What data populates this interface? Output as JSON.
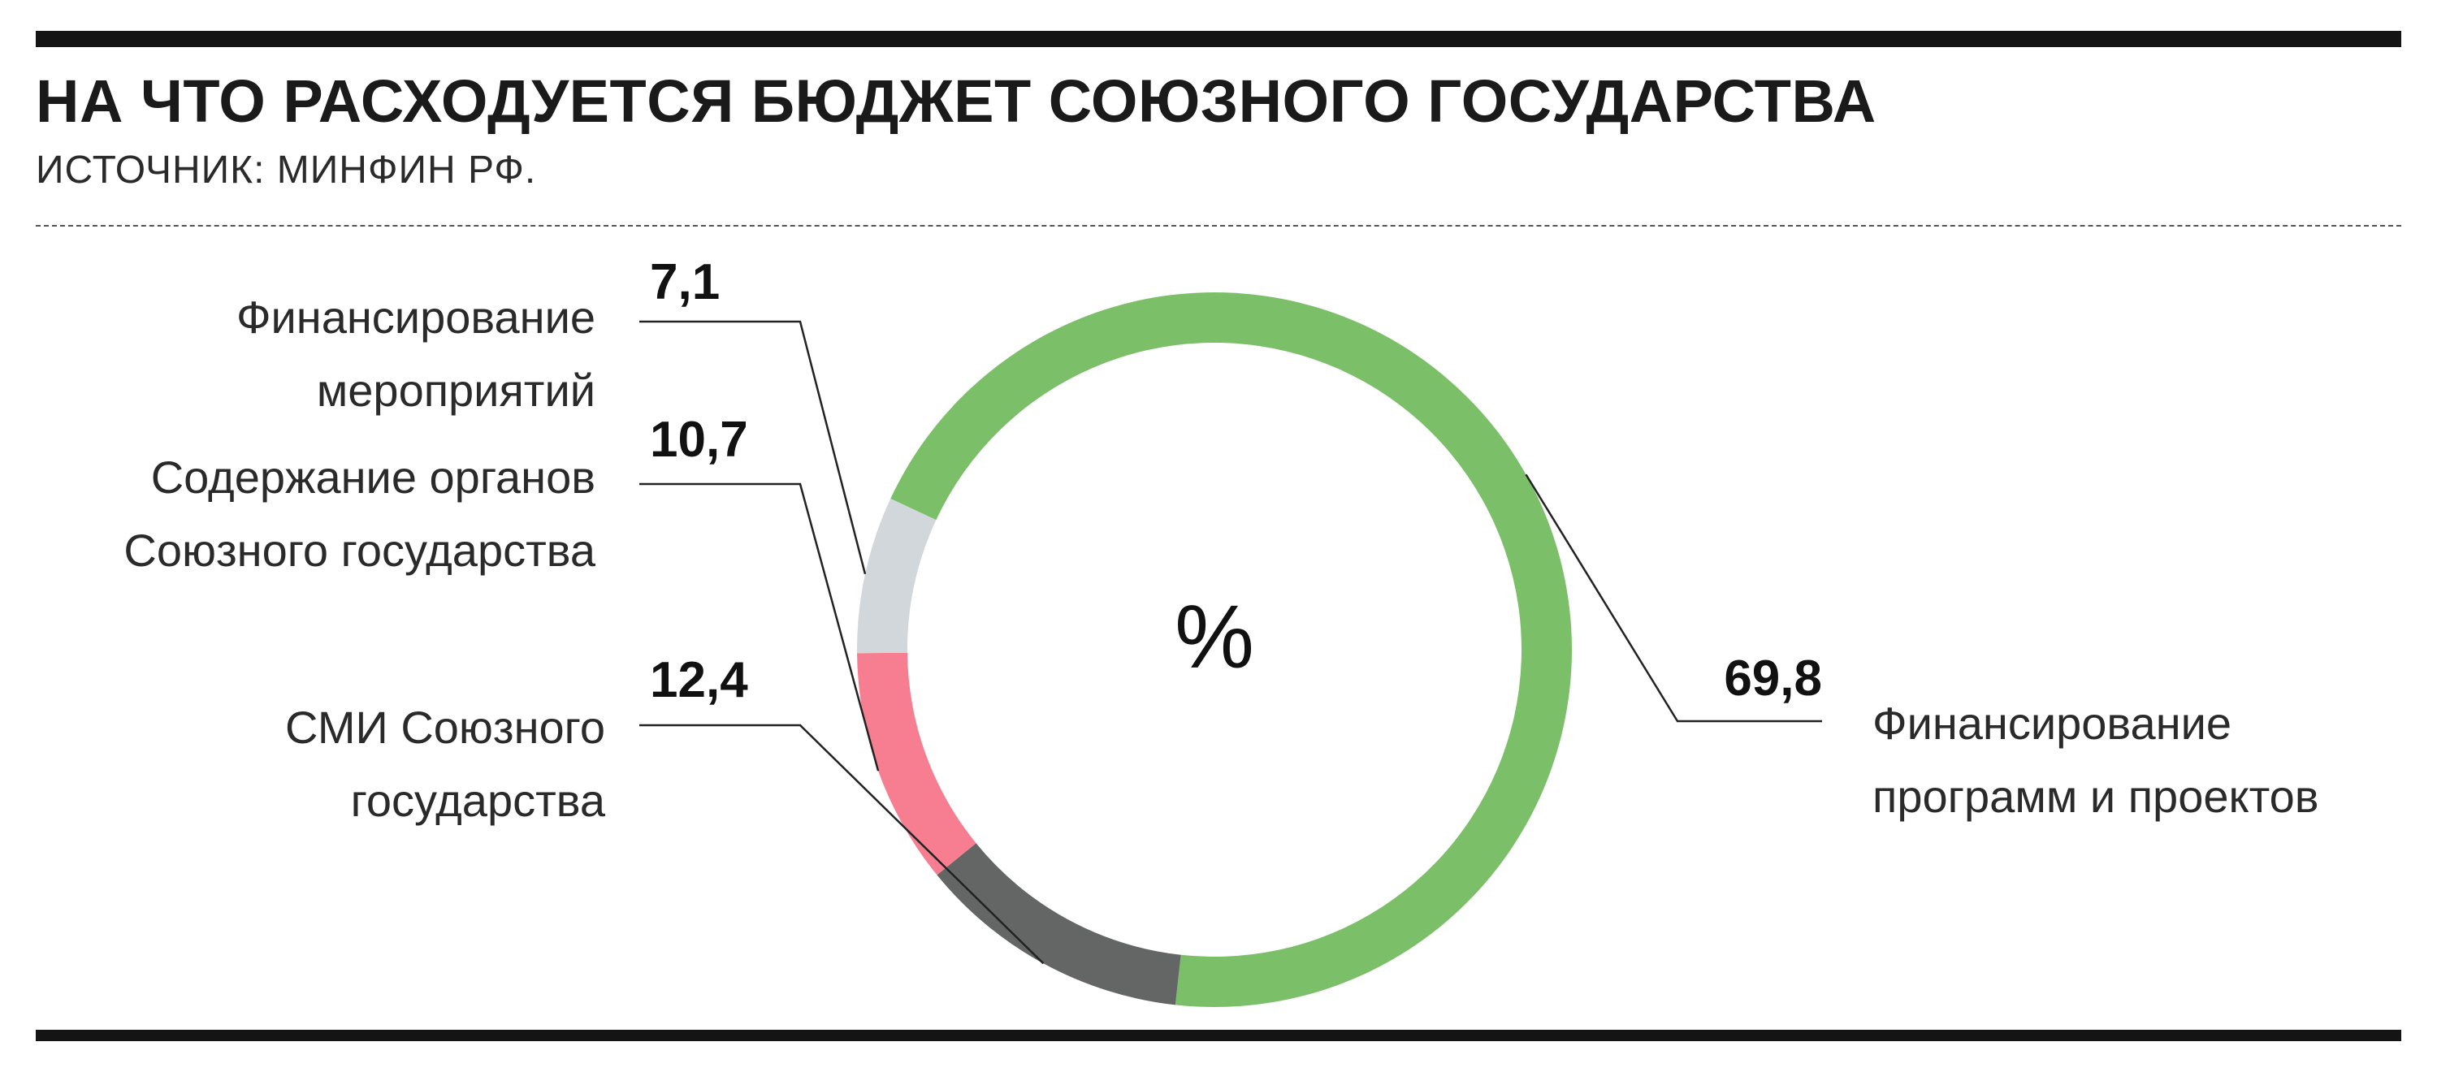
{
  "header": {
    "title": "НА ЧТО РАСХОДУЕТСЯ БЮДЖЕТ СОЮЗНОГО ГОСУДАРСТВА",
    "source": "ИСТОЧНИК: МИНФИН РФ."
  },
  "chart_data": {
    "type": "pie",
    "donut": true,
    "center_label": "%",
    "slices": [
      {
        "label": [
          "Финансирование",
          "программ и проектов"
        ],
        "value": 69.8,
        "value_text": "69,8",
        "color": "#7bbf69"
      },
      {
        "label": [
          "СМИ Союзного",
          "государства"
        ],
        "value": 12.4,
        "value_text": "12,4",
        "color": "#646666"
      },
      {
        "label": [
          "Содержание органов",
          "Союзного государства"
        ],
        "value": 10.7,
        "value_text": "10,7",
        "color": "#f77e90"
      },
      {
        "label": [
          "Финансирование",
          "мероприятий"
        ],
        "value": 7.1,
        "value_text": "7,1",
        "color": "#d2d7dc"
      }
    ]
  }
}
